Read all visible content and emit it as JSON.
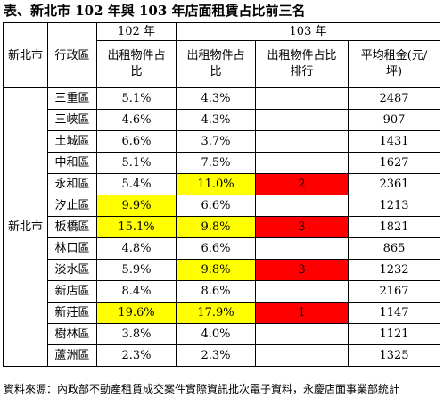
{
  "title": "表、新北市 102 年與 103 年店面租賃占比前三名",
  "headers": {
    "region": "新北市",
    "district": "行政區",
    "year_102": "102 年",
    "year_103": "103 年",
    "share_line1": "出租物件占",
    "share_line2": "比",
    "rank_line1": "出租物件占比",
    "rank_line2": "排行",
    "rent_line1": "平均租金(元/",
    "rent_line2": "坪)"
  },
  "region_label": "新北市",
  "rows": [
    {
      "district": "三重區",
      "share_102": "5.1%",
      "share_103": "4.3%",
      "rank_103": "",
      "avg_rent": "2487",
      "hl_102": "",
      "hl_103": "",
      "hl_rank": ""
    },
    {
      "district": "三峽區",
      "share_102": "4.6%",
      "share_103": "4.3%",
      "rank_103": "",
      "avg_rent": "907",
      "hl_102": "",
      "hl_103": "",
      "hl_rank": ""
    },
    {
      "district": "土城區",
      "share_102": "6.6%",
      "share_103": "3.7%",
      "rank_103": "",
      "avg_rent": "1431",
      "hl_102": "",
      "hl_103": "",
      "hl_rank": ""
    },
    {
      "district": "中和區",
      "share_102": "5.1%",
      "share_103": "7.5%",
      "rank_103": "",
      "avg_rent": "1627",
      "hl_102": "",
      "hl_103": "",
      "hl_rank": ""
    },
    {
      "district": "永和區",
      "share_102": "5.4%",
      "share_103": "11.0%",
      "rank_103": "2",
      "avg_rent": "2361",
      "hl_102": "",
      "hl_103": "yellow",
      "hl_rank": "red"
    },
    {
      "district": "汐止區",
      "share_102": "9.9%",
      "share_103": "6.6%",
      "rank_103": "",
      "avg_rent": "1213",
      "hl_102": "yellow",
      "hl_103": "",
      "hl_rank": ""
    },
    {
      "district": "板橋區",
      "share_102": "15.1%",
      "share_103": "9.8%",
      "rank_103": "3",
      "avg_rent": "1821",
      "hl_102": "yellow",
      "hl_103": "yellow",
      "hl_rank": "red"
    },
    {
      "district": "林口區",
      "share_102": "4.8%",
      "share_103": "6.6%",
      "rank_103": "",
      "avg_rent": "865",
      "hl_102": "",
      "hl_103": "",
      "hl_rank": ""
    },
    {
      "district": "淡水區",
      "share_102": "5.9%",
      "share_103": "9.8%",
      "rank_103": "3",
      "avg_rent": "1232",
      "hl_102": "",
      "hl_103": "yellow",
      "hl_rank": "red"
    },
    {
      "district": "新店區",
      "share_102": "8.4%",
      "share_103": "8.6%",
      "rank_103": "",
      "avg_rent": "2167",
      "hl_102": "",
      "hl_103": "",
      "hl_rank": ""
    },
    {
      "district": "新莊區",
      "share_102": "19.6%",
      "share_103": "17.9%",
      "rank_103": "1",
      "avg_rent": "1147",
      "hl_102": "yellow",
      "hl_103": "yellow",
      "hl_rank": "red"
    },
    {
      "district": "樹林區",
      "share_102": "3.8%",
      "share_103": "4.0%",
      "rank_103": "",
      "avg_rent": "1121",
      "hl_102": "",
      "hl_103": "",
      "hl_rank": ""
    },
    {
      "district": "蘆洲區",
      "share_102": "2.3%",
      "share_103": "2.3%",
      "rank_103": "",
      "avg_rent": "1325",
      "hl_102": "",
      "hl_103": "",
      "hl_rank": ""
    }
  ],
  "colors": {
    "highlight_yellow": "#ffff00",
    "highlight_red": "#ff0000"
  },
  "footer": "資料來源：內政部不動產租賃成交案件實際資訊批次電子資料，永慶店面事業部統計"
}
